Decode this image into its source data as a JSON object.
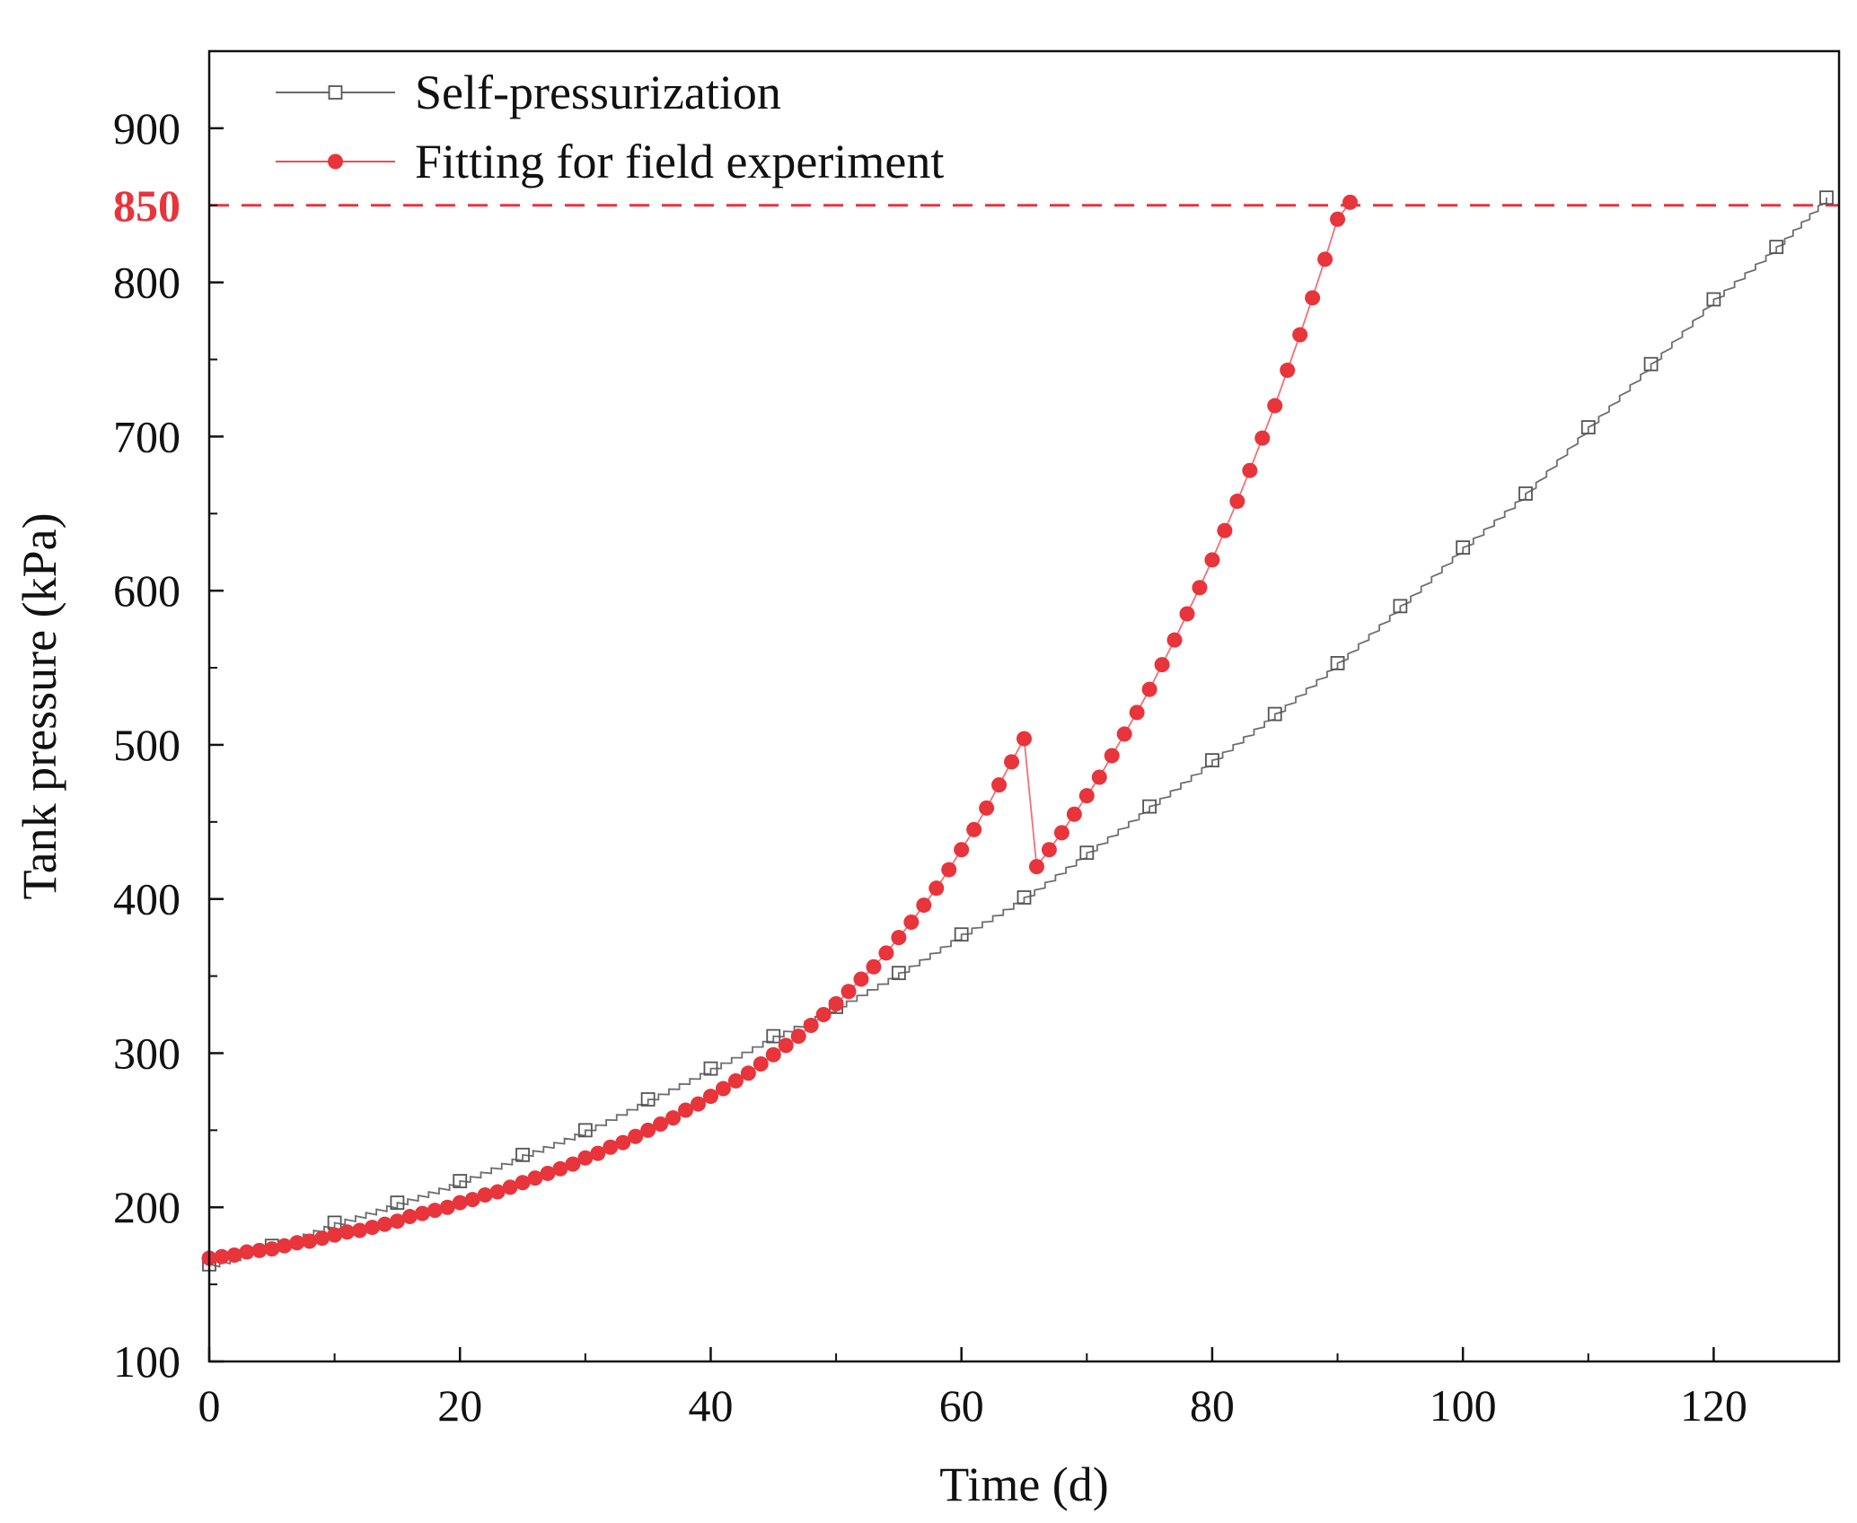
{
  "colors": {
    "fit": "#e8343b",
    "self": "#555555",
    "ref": "#e8343b",
    "axis": "#111111"
  },
  "chart_data": {
    "type": "line",
    "xlabel": "Time (d)",
    "ylabel": "Tank pressure (kPa)",
    "xlim": [
      0,
      130
    ],
    "ylim": [
      100,
      950
    ],
    "xticks": [
      "0",
      "20",
      "40",
      "60",
      "80",
      "100",
      "120"
    ],
    "yticks": [
      "100",
      "200",
      "300",
      "400",
      "500",
      "600",
      "700",
      "800",
      "900"
    ],
    "reference_line": {
      "y": 850,
      "label": "850",
      "style": "dashed"
    },
    "legend": {
      "position": "top-left"
    },
    "series": [
      {
        "name": "Self-pressurization",
        "marker": "open-square",
        "points": [
          [
            0,
            163
          ],
          [
            5,
            175
          ],
          [
            10,
            190
          ],
          [
            15,
            203
          ],
          [
            20,
            217
          ],
          [
            25,
            234
          ],
          [
            30,
            250
          ],
          [
            35,
            270
          ],
          [
            40,
            290
          ],
          [
            45,
            311
          ],
          [
            50,
            330
          ],
          [
            55,
            352
          ],
          [
            60,
            377
          ],
          [
            65,
            401
          ],
          [
            70,
            430
          ],
          [
            75,
            460
          ],
          [
            80,
            490
          ],
          [
            85,
            520
          ],
          [
            90,
            553
          ],
          [
            95,
            590
          ],
          [
            100,
            628
          ],
          [
            105,
            663
          ],
          [
            110,
            706
          ],
          [
            115,
            747
          ],
          [
            120,
            789
          ],
          [
            125,
            823
          ],
          [
            129,
            855
          ]
        ]
      },
      {
        "name": "Fitting for field experiment",
        "marker": "filled-circle",
        "x_start": 0,
        "x_step": 1,
        "values": [
          167,
          168,
          169,
          171,
          172,
          173,
          175,
          177,
          178,
          180,
          182,
          184,
          185,
          187,
          189,
          191,
          194,
          196,
          198,
          200,
          203,
          205,
          208,
          210,
          213,
          216,
          219,
          222,
          225,
          228,
          232,
          235,
          239,
          242,
          246,
          250,
          254,
          258,
          263,
          267,
          272,
          277,
          282,
          287,
          293,
          299,
          305,
          311,
          318,
          325,
          332,
          340,
          348,
          356,
          365,
          375,
          385,
          396,
          407,
          419,
          432,
          445,
          459,
          474,
          489,
          504,
          421,
          432,
          443,
          455,
          467,
          479,
          493,
          507,
          521,
          536,
          552,
          568,
          585,
          602,
          620,
          639,
          658,
          678,
          699,
          720,
          743,
          766,
          790,
          815,
          841,
          852
        ]
      }
    ]
  }
}
